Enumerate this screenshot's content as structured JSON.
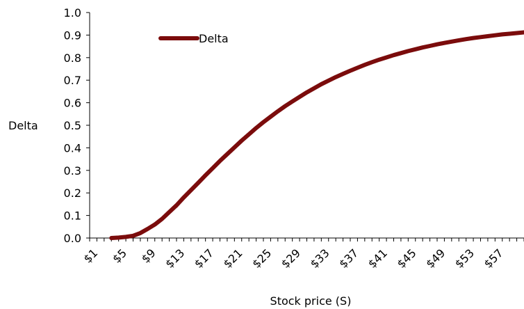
{
  "chart_data": {
    "type": "line",
    "title": "",
    "xlabel": "Stock price (S)",
    "ylabel": "Delta",
    "ylim": [
      0,
      1.0
    ],
    "y_ticks": [
      "0.0",
      "0.1",
      "0.2",
      "0.3",
      "0.4",
      "0.5",
      "0.6",
      "0.7",
      "0.8",
      "0.9",
      "1.0"
    ],
    "x_tick_labels": [
      "$1",
      "$5",
      "$9",
      "$13",
      "$17",
      "$21",
      "$25",
      "$29",
      "$33",
      "$37",
      "$41",
      "$45",
      "$49",
      "$53",
      "$57"
    ],
    "x_tick_values": [
      1,
      5,
      9,
      13,
      17,
      21,
      25,
      29,
      33,
      37,
      41,
      45,
      49,
      53,
      57
    ],
    "x_range": [
      1,
      61
    ],
    "grid": false,
    "legend": {
      "position": "top-left",
      "entries": [
        "Delta"
      ]
    },
    "series": [
      {
        "name": "Delta",
        "color": "#7B0C0C",
        "x": [
          4,
          5,
          6,
          7,
          8,
          9,
          10,
          11,
          12,
          13,
          14,
          15,
          16,
          17,
          18,
          19,
          20,
          21,
          22,
          23,
          24,
          25,
          26,
          27,
          28,
          29,
          30,
          31,
          32,
          33,
          34,
          35,
          36,
          37,
          38,
          39,
          40,
          41,
          42,
          43,
          44,
          45,
          46,
          47,
          48,
          49,
          50,
          51,
          52,
          53,
          54,
          55,
          56,
          57,
          58,
          59,
          60,
          61
        ],
        "values": [
          0.0,
          0.002,
          0.005,
          0.01,
          0.022,
          0.04,
          0.06,
          0.085,
          0.115,
          0.145,
          0.18,
          0.212,
          0.245,
          0.278,
          0.31,
          0.342,
          0.372,
          0.402,
          0.432,
          0.46,
          0.488,
          0.514,
          0.538,
          0.562,
          0.585,
          0.606,
          0.626,
          0.646,
          0.664,
          0.682,
          0.698,
          0.714,
          0.728,
          0.742,
          0.755,
          0.768,
          0.78,
          0.791,
          0.801,
          0.811,
          0.82,
          0.829,
          0.837,
          0.845,
          0.852,
          0.859,
          0.865,
          0.871,
          0.877,
          0.882,
          0.887,
          0.891,
          0.895,
          0.899,
          0.903,
          0.906,
          0.909,
          0.912
        ]
      }
    ]
  }
}
